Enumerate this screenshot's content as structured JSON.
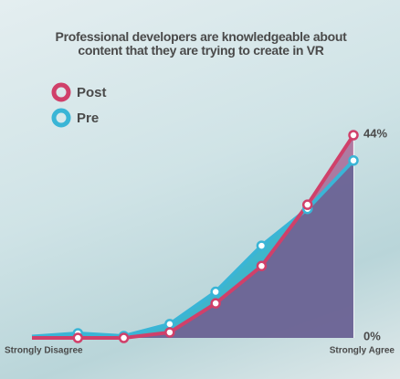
{
  "chart_data": {
    "type": "line",
    "title": "Professional developers are knowledgeable about content that they are trying to create in VR",
    "categories": [
      "Strongly Disagree",
      null,
      null,
      null,
      null,
      null,
      null,
      "Strongly Agree"
    ],
    "series": [
      {
        "name": "Post",
        "color": "#d0406a",
        "values": [
          0,
          0,
          0,
          1.2,
          7.5,
          15.6,
          28.9,
          44
        ]
      },
      {
        "name": "Pre",
        "color": "#3ab5d6",
        "values": [
          0.3,
          1,
          0.4,
          3,
          10,
          20,
          28,
          38.5
        ]
      }
    ],
    "ylim": [
      0,
      44
    ],
    "yticks": [
      {
        "value": 0,
        "label": "0%"
      },
      {
        "value": 44,
        "label": "44%"
      }
    ],
    "legend": "top-left"
  }
}
